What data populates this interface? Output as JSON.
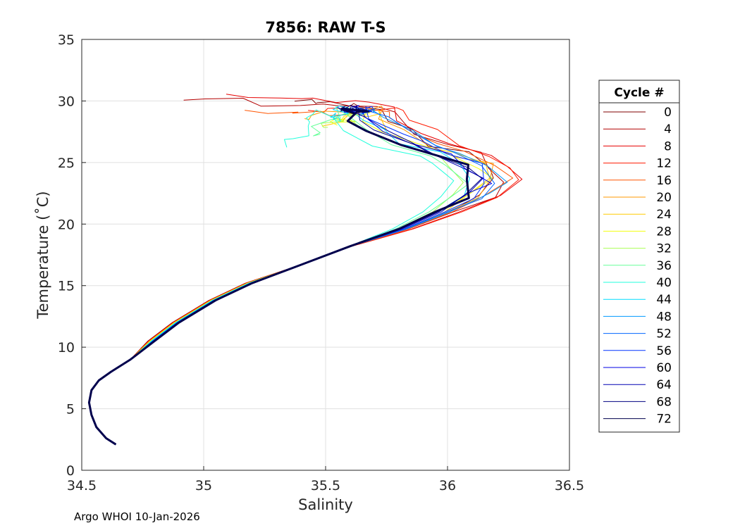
{
  "chart_data": {
    "type": "line",
    "title": "7856: RAW T-S",
    "xlabel": "Salinity",
    "ylabel": "Temperature (˚C)",
    "xlim": [
      34.5,
      36.5
    ],
    "ylim": [
      0,
      35
    ],
    "xticks": [
      "34.5",
      "35",
      "35.5",
      "36",
      "36.5"
    ],
    "yticks": [
      "0",
      "5",
      "10",
      "15",
      "20",
      "25",
      "30",
      "35"
    ],
    "grid": true,
    "legend": {
      "title": "Cycle #",
      "placement": "right-outside",
      "entries": [
        {
          "label": "0",
          "color": "#800000"
        },
        {
          "label": "4",
          "color": "#b30000"
        },
        {
          "label": "8",
          "color": "#e60000"
        },
        {
          "label": "12",
          "color": "#ff1a00"
        },
        {
          "label": "16",
          "color": "#ff5500"
        },
        {
          "label": "20",
          "color": "#ff9900"
        },
        {
          "label": "24",
          "color": "#ffcc00"
        },
        {
          "label": "28",
          "color": "#f2ff0d"
        },
        {
          "label": "32",
          "color": "#aaff55"
        },
        {
          "label": "36",
          "color": "#66ff99"
        },
        {
          "label": "40",
          "color": "#22ffdd"
        },
        {
          "label": "44",
          "color": "#00ddff"
        },
        {
          "label": "48",
          "color": "#0099ff"
        },
        {
          "label": "52",
          "color": "#0066ff"
        },
        {
          "label": "56",
          "color": "#0033ff"
        },
        {
          "label": "60",
          "color": "#0000e6"
        },
        {
          "label": "64",
          "color": "#0000b3"
        },
        {
          "label": "68",
          "color": "#000080"
        },
        {
          "label": "72",
          "color": "#00004d"
        }
      ]
    },
    "base_profile": [
      {
        "s": 34.64,
        "t": 2.1
      },
      {
        "s": 34.6,
        "t": 2.6
      },
      {
        "s": 34.56,
        "t": 3.5
      },
      {
        "s": 34.54,
        "t": 4.5
      },
      {
        "s": 34.53,
        "t": 5.5
      },
      {
        "s": 34.54,
        "t": 6.5
      },
      {
        "s": 34.57,
        "t": 7.3
      },
      {
        "s": 34.62,
        "t": 8.0
      },
      {
        "s": 34.7,
        "t": 9.0
      },
      {
        "s": 34.8,
        "t": 10.5
      },
      {
        "s": 34.9,
        "t": 12.0
      },
      {
        "s": 35.05,
        "t": 13.8
      },
      {
        "s": 35.2,
        "t": 15.2
      },
      {
        "s": 35.4,
        "t": 16.7
      },
      {
        "s": 35.6,
        "t": 18.2
      },
      {
        "s": 35.8,
        "t": 19.6
      },
      {
        "s": 35.95,
        "t": 21.0
      },
      {
        "s": 36.05,
        "t": 22.3
      },
      {
        "s": 36.1,
        "t": 23.5
      },
      {
        "s": 36.05,
        "t": 24.7
      },
      {
        "s": 35.95,
        "t": 25.7
      },
      {
        "s": 35.82,
        "t": 26.5
      },
      {
        "s": 35.7,
        "t": 27.5
      },
      {
        "s": 35.63,
        "t": 28.5
      },
      {
        "s": 35.6,
        "t": 29.3
      }
    ],
    "series": [
      {
        "cycle": "0",
        "color": "#800000",
        "dS_upper": 0.12,
        "surfaceS": 35.35,
        "surfaceT": 30.2
      },
      {
        "cycle": "4",
        "color": "#b30000",
        "dS_upper": 0.15,
        "surfaceS": 34.95,
        "surfaceT": 30.3
      },
      {
        "cycle": "8",
        "color": "#e60000",
        "dS_upper": 0.2,
        "surfaceS": 35.1,
        "surfaceT": 30.5
      },
      {
        "cycle": "12",
        "color": "#ff1a00",
        "dS_upper": 0.22,
        "surfaceS": 35.4,
        "surfaceT": 29.4
      },
      {
        "cycle": "16",
        "color": "#ff5500",
        "dS_upper": 0.14,
        "surfaceS": 35.2,
        "surfaceT": 29.0
      },
      {
        "cycle": "20",
        "color": "#ff9900",
        "dS_upper": 0.1,
        "surfaceS": 35.4,
        "surfaceT": 28.6
      },
      {
        "cycle": "24",
        "color": "#ffcc00",
        "dS_upper": 0.08,
        "surfaceS": 35.5,
        "surfaceT": 28.2
      },
      {
        "cycle": "28",
        "color": "#f2ff0d",
        "dS_upper": 0.05,
        "surfaceS": 35.55,
        "surfaceT": 28.0
      },
      {
        "cycle": "32",
        "color": "#aaff55",
        "dS_upper": -0.02,
        "surfaceS": 35.5,
        "surfaceT": 27.6
      },
      {
        "cycle": "36",
        "color": "#66ff99",
        "dS_upper": -0.05,
        "surfaceS": 35.45,
        "surfaceT": 27.0
      },
      {
        "cycle": "40",
        "color": "#22ffdd",
        "dS_upper": -0.1,
        "surfaceS": 35.35,
        "surfaceT": 26.3
      },
      {
        "cycle": "44",
        "color": "#00ddff",
        "dS_upper": 0.02,
        "surfaceS": 35.55,
        "surfaceT": 28.4
      },
      {
        "cycle": "48",
        "color": "#0099ff",
        "dS_upper": 0.12,
        "surfaceS": 35.65,
        "surfaceT": 29.0
      },
      {
        "cycle": "52",
        "color": "#0066ff",
        "dS_upper": 0.1,
        "surfaceS": 35.6,
        "surfaceT": 29.2
      },
      {
        "cycle": "56",
        "color": "#0033ff",
        "dS_upper": 0.08,
        "surfaceS": 35.62,
        "surfaceT": 29.3
      },
      {
        "cycle": "60",
        "color": "#0000e6",
        "dS_upper": 0.05,
        "surfaceS": 35.6,
        "surfaceT": 29.4
      },
      {
        "cycle": "64",
        "color": "#0000b3",
        "dS_upper": 0.03,
        "surfaceS": 35.58,
        "surfaceT": 29.3
      },
      {
        "cycle": "68",
        "color": "#000080",
        "dS_upper": 0.02,
        "surfaceS": 35.6,
        "surfaceT": 29.5
      },
      {
        "cycle": "72",
        "color": "#00004d",
        "dS_upper": 0.0,
        "surfaceS": 35.6,
        "surfaceT": 29.3
      }
    ]
  },
  "footer": "Argo WHOI 10-Jan-2026"
}
